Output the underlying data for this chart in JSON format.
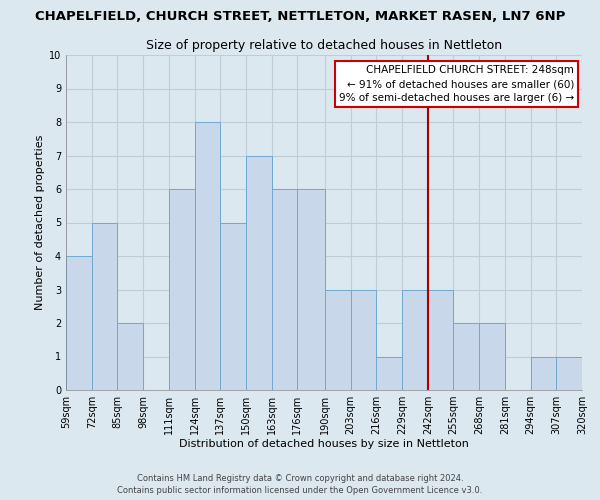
{
  "title": "CHAPELFIELD, CHURCH STREET, NETTLETON, MARKET RASEN, LN7 6NP",
  "subtitle": "Size of property relative to detached houses in Nettleton",
  "xlabel": "Distribution of detached houses by size in Nettleton",
  "ylabel": "Number of detached properties",
  "bar_heights": [
    4,
    5,
    2,
    0,
    6,
    8,
    5,
    7,
    6,
    6,
    3,
    3,
    1,
    3,
    3,
    2,
    2,
    0,
    1,
    1
  ],
  "bin_edges": [
    59,
    72,
    85,
    98,
    111,
    124,
    137,
    150,
    163,
    176,
    190,
    203,
    216,
    229,
    242,
    255,
    268,
    281,
    294,
    307,
    320
  ],
  "x_tick_labels": [
    "59sqm",
    "72sqm",
    "85sqm",
    "98sqm",
    "111sqm",
    "124sqm",
    "137sqm",
    "150sqm",
    "163sqm",
    "176sqm",
    "190sqm",
    "203sqm",
    "216sqm",
    "229sqm",
    "242sqm",
    "255sqm",
    "268sqm",
    "281sqm",
    "294sqm",
    "307sqm",
    "320sqm"
  ],
  "bar_color": "#c8d8ea",
  "bar_edgecolor": "#6fa8d0",
  "grid_color": "#c0ccd8",
  "background_color": "#dce8f0",
  "vline_x": 242,
  "vline_color": "#aa0000",
  "ylim": [
    0,
    10
  ],
  "yticks": [
    0,
    1,
    2,
    3,
    4,
    5,
    6,
    7,
    8,
    9,
    10
  ],
  "annotation_title": "CHAPELFIELD CHURCH STREET: 248sqm",
  "annotation_line1": "← 91% of detached houses are smaller (60)",
  "annotation_line2": "9% of semi-detached houses are larger (6) →",
  "footer_line1": "Contains HM Land Registry data © Crown copyright and database right 2024.",
  "footer_line2": "Contains public sector information licensed under the Open Government Licence v3.0.",
  "title_fontsize": 9.5,
  "subtitle_fontsize": 9,
  "axis_label_fontsize": 8,
  "tick_fontsize": 7,
  "annotation_fontsize": 7.5,
  "footer_fontsize": 6
}
